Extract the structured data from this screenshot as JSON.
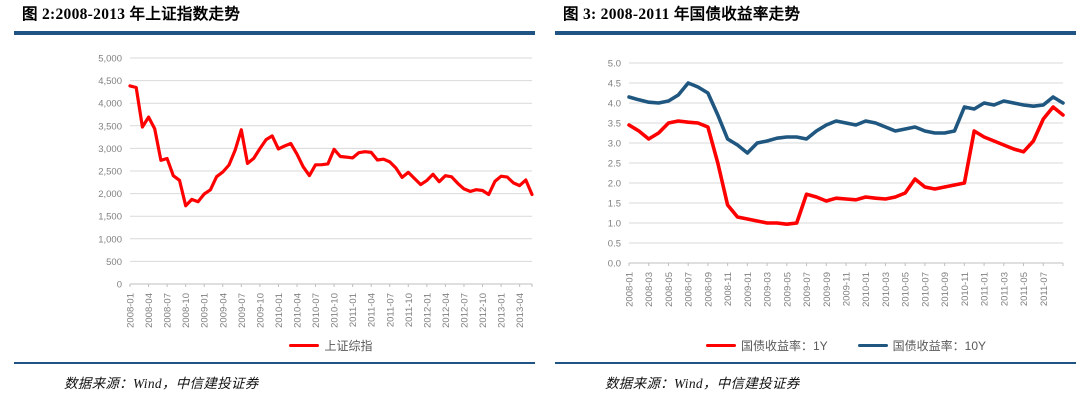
{
  "colors": {
    "accent_rule": "#1F5484",
    "series_red": "#FF0000",
    "series_blue": "#1F5780",
    "gridline": "#D9D9D9",
    "axis_line": "#BFBFBF",
    "axis_text": "#808080",
    "legend_text": "#595959"
  },
  "figure2": {
    "title": "图 2:2008-2013 年上证指数走势",
    "source": "数据来源：Wind，中信建投证券"
  },
  "figure3": {
    "title": "图 3: 2008-2011 年国债收益率走势",
    "source": "数据来源：Wind，中信建投证券"
  },
  "chart_data": [
    {
      "id": "sse-index",
      "type": "line",
      "title": "图 2:2008-2013 年上证指数走势",
      "xlabel": "",
      "ylabel": "",
      "ylim": [
        0,
        5000
      ],
      "ytick_step": 500,
      "grid": true,
      "legend_position": "bottom",
      "x_ticks": {
        "every": 3,
        "count": 22
      },
      "categories": [
        "2008-01",
        "2008-02",
        "2008-03",
        "2008-04",
        "2008-05",
        "2008-06",
        "2008-07",
        "2008-08",
        "2008-09",
        "2008-10",
        "2008-11",
        "2008-12",
        "2009-01",
        "2009-02",
        "2009-03",
        "2009-04",
        "2009-05",
        "2009-06",
        "2009-07",
        "2009-08",
        "2009-09",
        "2009-10",
        "2009-11",
        "2009-12",
        "2010-01",
        "2010-02",
        "2010-03",
        "2010-04",
        "2010-05",
        "2010-06",
        "2010-07",
        "2010-08",
        "2010-09",
        "2010-10",
        "2010-11",
        "2010-12",
        "2011-01",
        "2011-02",
        "2011-03",
        "2011-04",
        "2011-05",
        "2011-06",
        "2011-07",
        "2011-08",
        "2011-09",
        "2011-10",
        "2011-11",
        "2011-12",
        "2012-01",
        "2012-02",
        "2012-03",
        "2012-04",
        "2012-05",
        "2012-06",
        "2012-07",
        "2012-08",
        "2012-09",
        "2012-10",
        "2012-11",
        "2012-12",
        "2013-01",
        "2013-02",
        "2013-03",
        "2013-04",
        "2013-05",
        "2013-06"
      ],
      "series": [
        {
          "name": "上证综指",
          "color": "#FF0000",
          "values": [
            4383,
            4348,
            3473,
            3693,
            3433,
            2736,
            2776,
            2397,
            2294,
            1729,
            1871,
            1821,
            1991,
            2083,
            2373,
            2478,
            2633,
            2959,
            3412,
            2668,
            2779,
            2995,
            3195,
            3277,
            2989,
            3052,
            3109,
            2871,
            2592,
            2398,
            2638,
            2639,
            2656,
            2979,
            2820,
            2808,
            2790,
            2905,
            2928,
            2911,
            2743,
            2762,
            2701,
            2567,
            2359,
            2468,
            2333,
            2199,
            2293,
            2428,
            2263,
            2396,
            2372,
            2225,
            2103,
            2048,
            2086,
            2068,
            1980,
            2269,
            2385,
            2366,
            2237,
            2177,
            2301,
            1979
          ]
        }
      ]
    },
    {
      "id": "bond-yield",
      "type": "line",
      "title": "图 3: 2008-2011 年国债收益率走势",
      "xlabel": "",
      "ylabel": "",
      "ylim": [
        0,
        5
      ],
      "ytick_step": 0.5,
      "ytick_decimals": 1,
      "grid": true,
      "legend_position": "bottom",
      "x_ticks": {
        "every": 2,
        "count": 22
      },
      "categories": [
        "2008-01",
        "2008-02",
        "2008-03",
        "2008-04",
        "2008-05",
        "2008-06",
        "2008-07",
        "2008-08",
        "2008-09",
        "2008-10",
        "2008-11",
        "2008-12",
        "2009-01",
        "2009-02",
        "2009-03",
        "2009-04",
        "2009-05",
        "2009-06",
        "2009-07",
        "2009-08",
        "2009-09",
        "2009-10",
        "2009-11",
        "2009-12",
        "2010-01",
        "2010-02",
        "2010-03",
        "2010-04",
        "2010-05",
        "2010-06",
        "2010-07",
        "2010-08",
        "2010-09",
        "2010-10",
        "2010-11",
        "2010-12",
        "2011-01",
        "2011-02",
        "2011-03",
        "2011-04",
        "2011-05",
        "2011-06",
        "2011-07",
        "2011-08",
        "2011-09"
      ],
      "series": [
        {
          "name": "国债收益率：1Y",
          "color": "#FF0000",
          "values": [
            3.45,
            3.3,
            3.1,
            3.25,
            3.5,
            3.55,
            3.52,
            3.5,
            3.4,
            2.5,
            1.45,
            1.15,
            1.1,
            1.05,
            1.0,
            1.0,
            0.97,
            1.0,
            1.72,
            1.65,
            1.55,
            1.62,
            1.6,
            1.58,
            1.65,
            1.62,
            1.6,
            1.65,
            1.75,
            2.1,
            1.9,
            1.85,
            1.9,
            1.95,
            2.0,
            3.3,
            3.15,
            3.05,
            2.95,
            2.85,
            2.78,
            3.05,
            3.6,
            3.9,
            3.7
          ]
        },
        {
          "name": "国债收益率：10Y",
          "color": "#1F5780",
          "values": [
            4.15,
            4.08,
            4.02,
            4.0,
            4.05,
            4.2,
            4.5,
            4.4,
            4.25,
            3.7,
            3.1,
            2.95,
            2.75,
            3.0,
            3.05,
            3.12,
            3.15,
            3.15,
            3.1,
            3.3,
            3.45,
            3.55,
            3.5,
            3.45,
            3.55,
            3.5,
            3.4,
            3.3,
            3.35,
            3.4,
            3.3,
            3.25,
            3.25,
            3.3,
            3.9,
            3.85,
            4.0,
            3.95,
            4.05,
            4.0,
            3.95,
            3.92,
            3.95,
            4.15,
            4.0
          ]
        }
      ]
    }
  ]
}
